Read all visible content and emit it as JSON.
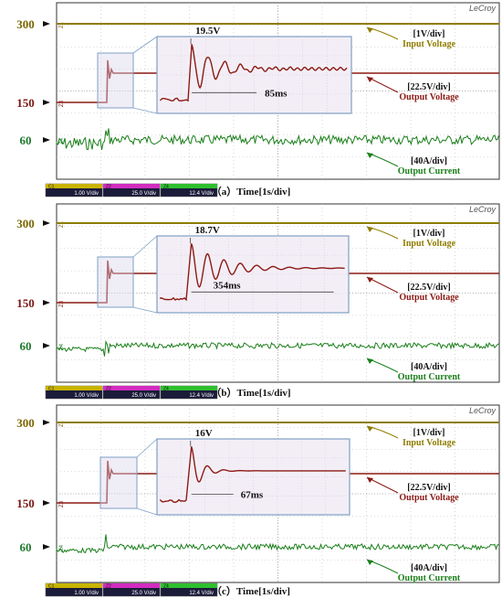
{
  "chart_data": [
    {
      "type": "line",
      "caption": "（a）Time[1s/div]",
      "brand": "LeCroy",
      "y_labels": [
        "300",
        "150",
        "60"
      ],
      "channel_markers": [
        "Z1",
        "Z3",
        "Z4"
      ],
      "annotations": {
        "input": [
          "[1V/div]",
          "Input Voltage"
        ],
        "output_v": [
          "[22.5V/div]",
          "Output Voltage"
        ],
        "output_i": [
          "[40A/div]",
          "Output Current"
        ]
      },
      "zoom": {
        "peak_label": "19.5V",
        "settle_label": "85ms",
        "peak_v": 19.5,
        "settle_ms": 85
      },
      "scale_bar": [
        {
          "ch": "C1",
          "v": "1.00 V/div"
        },
        {
          "ch": "Z2",
          "v": "25.0 V/div"
        },
        {
          "ch": "Z4",
          "v": "12.4 V/div"
        }
      ]
    },
    {
      "type": "line",
      "caption": "（b）Time[1s/div]",
      "brand": "LeCroy",
      "y_labels": [
        "300",
        "150",
        "60"
      ],
      "channel_markers": [
        "Z1",
        "Z3",
        "Z4"
      ],
      "annotations": {
        "input": [
          "[1V/div]",
          "Input Voltage"
        ],
        "output_v": [
          "[22.5V/div]",
          "Output Voltage"
        ],
        "output_i": [
          "[40A/div]",
          "Output Current"
        ]
      },
      "zoom": {
        "peak_label": "18.7V",
        "settle_label": "354ms",
        "peak_v": 18.7,
        "settle_ms": 354
      },
      "scale_bar": [
        {
          "ch": "C1",
          "v": "1.00 V/div"
        },
        {
          "ch": "Z2",
          "v": "25.0 V/div"
        },
        {
          "ch": "Z4",
          "v": "12.4 V/div"
        }
      ]
    },
    {
      "type": "line",
      "caption": "（c）Time[1s/div]",
      "brand": "LeCroy",
      "y_labels": [
        "300",
        "150",
        "60"
      ],
      "channel_markers": [
        "Z1",
        "Z3",
        "Z4"
      ],
      "annotations": {
        "input": [
          "[1V/div]",
          "Input Voltage"
        ],
        "output_v": [
          "[22.5V/div]",
          "Output Voltage"
        ],
        "output_i": [
          "[40A/div]",
          "Output Current"
        ]
      },
      "zoom": {
        "peak_label": "16V",
        "settle_label": "67ms",
        "peak_v": 16,
        "settle_ms": 67
      },
      "scale_bar": [
        {
          "ch": "C1",
          "v": "1.00 V/div"
        },
        {
          "ch": "Z2",
          "v": "25.0 V/div"
        },
        {
          "ch": "Z4",
          "v": "12.4 V/div"
        }
      ]
    }
  ],
  "colors": {
    "input": "#8f7d00",
    "output_v": "#8c1a14",
    "output_i": "#1a7f1a",
    "axis_label_300": "#7a6500",
    "axis_label_150": "#7a1410",
    "axis_label_60": "#1f7a2e",
    "zoom_fill": "#f3eef6",
    "zoom_stroke": "#7f9fc5",
    "grid": "#b8b8b8",
    "scale_c1": "#c8b400",
    "scale_z2": "#d22cc0",
    "scale_z4": "#2ec02e"
  }
}
